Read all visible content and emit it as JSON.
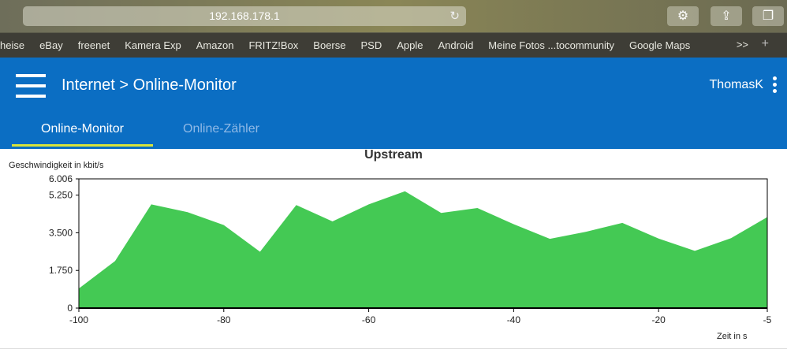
{
  "browser": {
    "url": "192.168.178.1",
    "icons": [
      "reload-icon",
      "gear-icon",
      "share-icon",
      "tabs-icon"
    ],
    "bookmarks": [
      "heise",
      "eBay",
      "freenet",
      "Kamera Exp",
      "Amazon",
      "FRITZ!Box",
      "Boerse",
      "PSD",
      "Apple",
      "Android",
      "Meine Fotos ...tocommunity",
      "Google Maps"
    ],
    "more": ">>",
    "add": "+"
  },
  "header": {
    "breadcrumb": "Internet > Online-Monitor",
    "user": "ThomasK",
    "color": "#0b6ec3"
  },
  "tabs": [
    {
      "label": "Online-Monitor",
      "active": true
    },
    {
      "label": "Online-Zähler",
      "active": false
    }
  ],
  "chart_data": {
    "type": "area",
    "title": "Upstream",
    "ylabel": "Geschwindigkeit in kbit/s",
    "xlabel": "Zeit in s",
    "x": [
      -100,
      -95,
      -90,
      -85,
      -80,
      -75,
      -70,
      -65,
      -60,
      -55,
      -50,
      -45,
      -40,
      -35,
      -30,
      -25,
      -20,
      -15,
      -10,
      -5
    ],
    "values": [
      0.91,
      2.19,
      4.82,
      4.46,
      3.86,
      2.62,
      4.79,
      4.03,
      4.82,
      5.43,
      4.42,
      4.65,
      3.9,
      3.22,
      3.55,
      3.96,
      3.23,
      2.66,
      3.25,
      4.23
    ],
    "ylim": [
      0,
      6.006
    ],
    "xlim": [
      -100,
      -5
    ],
    "yticks": [
      "0",
      "1.750",
      "3.500",
      "5.250",
      "6.006"
    ],
    "ytick_values": [
      0,
      1.75,
      3.5,
      5.25,
      6.006
    ],
    "xticks": [
      "-100",
      "-80",
      "-60",
      "-40",
      "-20",
      "-5"
    ],
    "xtick_values": [
      -100,
      -80,
      -60,
      -40,
      -20,
      -5
    ],
    "color": "#44c954",
    "grid": false
  }
}
